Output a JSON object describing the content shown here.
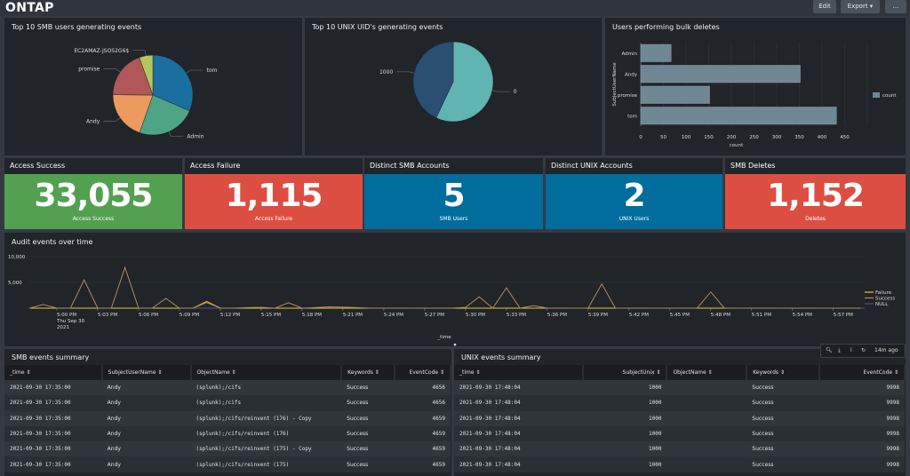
{
  "header": {
    "title": "ONTAP",
    "edit_label": "Edit",
    "export_label": "Export ▾",
    "more_label": "..."
  },
  "panels": {
    "smb_pie": {
      "title": "Top 10 SMB users generating events"
    },
    "unix_pie": {
      "title": "Top 10 UNIX UID's generating events"
    },
    "bulk_deletes": {
      "title": "Users performing bulk deletes"
    },
    "timeline": {
      "title": "Audit events over time"
    },
    "smb_table": {
      "title": "SMB events summary"
    },
    "unix_table": {
      "title": "UNIX events summary"
    }
  },
  "single_values": [
    {
      "title": "Access Success",
      "value": "33,055",
      "label": "Access Success",
      "color": "#53a051"
    },
    {
      "title": "Access Failure",
      "value": "1,115",
      "label": "Access Failure",
      "color": "#dc4e41"
    },
    {
      "title": "Distinct SMB Accounts",
      "value": "5",
      "label": "SMB Users",
      "color": "#006d9c"
    },
    {
      "title": "Distinct UNIX Accounts",
      "value": "2",
      "label": "UNIX Users",
      "color": "#006d9c"
    },
    {
      "title": "SMB Deletes",
      "value": "1,152",
      "label": "Deletes",
      "color": "#dc4e41"
    }
  ],
  "chart_data": [
    {
      "type": "pie",
      "title": "Top 10 SMB users generating events",
      "categories": [
        "tom",
        "Admin",
        "Andy",
        "promise",
        "EC2AMAZ-JSOS2G6$"
      ],
      "values": [
        31.5,
        23.9,
        19.7,
        19.4,
        5.5
      ],
      "colors": [
        "#1a6f9f",
        "#4ea585",
        "#ed9a5e",
        "#b0575a",
        "#b7c65c"
      ]
    },
    {
      "type": "pie",
      "title": "Top 10 UNIX UID's generating events",
      "categories": [
        "0",
        "1000"
      ],
      "values": [
        57,
        43
      ],
      "colors": [
        "#60b4b2",
        "#2a4f72"
      ]
    },
    {
      "type": "bar",
      "orientation": "horizontal",
      "title": "Users performing bulk deletes",
      "categories": [
        "Admin",
        "Andy",
        "promise",
        "tom"
      ],
      "series": [
        {
          "name": "count",
          "values": [
            67,
            352,
            152,
            432
          ]
        }
      ],
      "xlabel": "count",
      "ylabel": "SubjectUserName",
      "xlim": [
        0,
        500
      ],
      "xticks": [
        "0",
        "50",
        "100",
        "150",
        "200",
        "250",
        "300",
        "350",
        "400",
        "450"
      ],
      "legend": "right",
      "color": "#708794"
    },
    {
      "type": "line",
      "title": "Audit events over time",
      "xlabel": "_time",
      "ylim": [
        0,
        10000
      ],
      "yticks": [
        "5,000",
        "10,000"
      ],
      "xticks": [
        "5:00 PM",
        "5:03 PM",
        "5:06 PM",
        "5:09 PM",
        "5:12 PM",
        "5:15 PM",
        "5:18 PM",
        "5:21 PM",
        "5:24 PM",
        "5:27 PM",
        "5:30 PM",
        "5:33 PM",
        "5:36 PM",
        "5:39 PM",
        "5:42 PM",
        "5:45 PM",
        "5:48 PM",
        "5:51 PM",
        "5:54 PM",
        "5:57 PM"
      ],
      "xtick_sub": [
        "Thu Sep 30",
        "2021"
      ],
      "x_start": "4:58 PM",
      "x_step_minutes": 1,
      "legend": "right",
      "series": [
        {
          "name": "Failure",
          "color": "#e5c33a",
          "values": [
            0,
            0,
            0,
            0,
            0,
            0,
            0,
            0,
            0,
            0,
            0,
            0,
            0,
            1300,
            0,
            0,
            0,
            0,
            0,
            0,
            0,
            0,
            0,
            0,
            0,
            0,
            0,
            0,
            0,
            0,
            0,
            0,
            0,
            0,
            0,
            0,
            0,
            0,
            0,
            0,
            0,
            0,
            0,
            0,
            0,
            0,
            0,
            0,
            0,
            0,
            0,
            0,
            0,
            0,
            0,
            0,
            0,
            0,
            0,
            0,
            0,
            0
          ]
        },
        {
          "name": "Success",
          "color": "#b08a62",
          "values": [
            0,
            700,
            0,
            0,
            5500,
            0,
            0,
            7900,
            0,
            0,
            1900,
            0,
            0,
            1100,
            0,
            0,
            100,
            150,
            0,
            1050,
            0,
            100,
            250,
            200,
            100,
            0,
            0,
            0,
            0,
            0,
            0,
            0,
            150,
            2200,
            0,
            3950,
            0,
            500,
            0,
            0,
            0,
            0,
            4700,
            0,
            0,
            0,
            0,
            0,
            0,
            0,
            3150,
            0,
            0,
            0,
            0,
            0,
            0,
            0,
            0,
            0,
            0,
            0
          ]
        },
        {
          "name": "NULL",
          "color": "#5a4e8c",
          "values": [
            0,
            0,
            0,
            0,
            0,
            0,
            0,
            0,
            0,
            0,
            0,
            0,
            0,
            0,
            0,
            0,
            0,
            0,
            0,
            0,
            0,
            0,
            0,
            0,
            0,
            0,
            0,
            0,
            0,
            0,
            0,
            0,
            0,
            0,
            0,
            0,
            0,
            0,
            0,
            0,
            0,
            0,
            0,
            0,
            0,
            0,
            0,
            0,
            0,
            0,
            0,
            0,
            0,
            0,
            0,
            0,
            0,
            0,
            0,
            0,
            0,
            0
          ]
        }
      ]
    }
  ],
  "smb_table": {
    "columns": [
      "_time ⇕",
      "SubjectUserName ⇕",
      "ObjectName ⇕",
      "Keywords ⇕",
      "EventCode ⇕"
    ],
    "rows": [
      [
        "2021-09-30 17:35:00",
        "Andy",
        "(splunk);/cifs",
        "Success",
        "4656"
      ],
      [
        "2021-09-30 17:35:00",
        "Andy",
        "(splunk);/cifs",
        "Success",
        "4656"
      ],
      [
        "2021-09-30 17:35:00",
        "Andy",
        "(splunk);/cifs/reinvent (176) - Copy",
        "Success",
        "4659"
      ],
      [
        "2021-09-30 17:35:00",
        "Andy",
        "(splunk);/cifs/reinvent (176)",
        "Success",
        "4659"
      ],
      [
        "2021-09-30 17:35:00",
        "Andy",
        "(splunk);/cifs/reinvent (175) - Copy",
        "Success",
        "4659"
      ],
      [
        "2021-09-30 17:35:00",
        "Andy",
        "(splunk);/cifs/reinvent (175)",
        "Success",
        "4659"
      ]
    ]
  },
  "unix_table": {
    "columns": [
      "_time ⇕",
      "SubjectUnix ⇕",
      "ObjectName ⇕",
      "Keywords ⇕",
      "EventCode ⇕"
    ],
    "rows": [
      [
        "2021-09-30 17:48:04",
        "1000",
        "",
        "Success",
        "9998"
      ],
      [
        "2021-09-30 17:48:04",
        "1000",
        "",
        "Success",
        "9998"
      ],
      [
        "2021-09-30 17:48:04",
        "1000",
        "",
        "Success",
        "9998"
      ],
      [
        "2021-09-30 17:48:04",
        "1000",
        "",
        "Success",
        "9998"
      ],
      [
        "2021-09-30 17:48:04",
        "1000",
        "",
        "Success",
        "9998"
      ],
      [
        "2021-09-30 17:48:04",
        "1000",
        "",
        "Success",
        "9998"
      ]
    ]
  },
  "toolbar": {
    "refreshed": "14m ago"
  }
}
